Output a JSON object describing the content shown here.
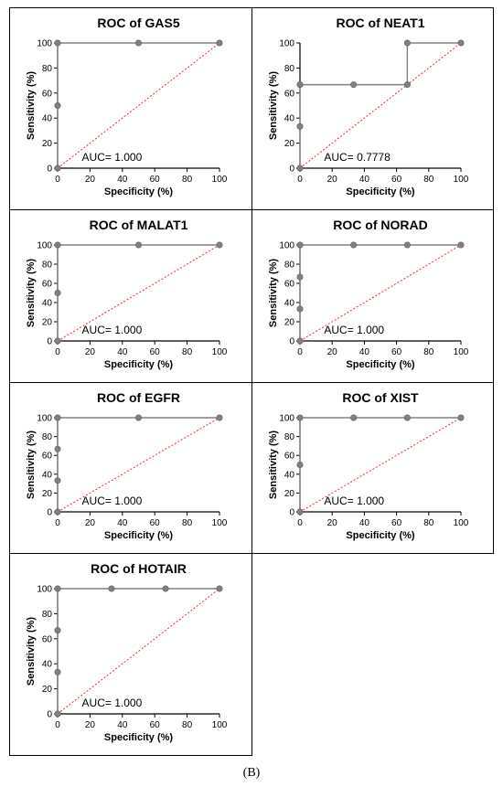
{
  "figure_label": "(B)",
  "colors": {
    "roc_line": "#808080",
    "point_fill": "#808080",
    "reference_line": "#e03030"
  },
  "chart_data": [
    {
      "type": "line",
      "title": "ROC of GAS5",
      "xlabel": "Specificity (%)",
      "ylabel": "Sensitivity (%)",
      "xlim": [
        0,
        100
      ],
      "ylim": [
        0,
        100
      ],
      "xticks": [
        0,
        20,
        40,
        60,
        80,
        100
      ],
      "yticks": [
        0,
        20,
        40,
        60,
        80,
        100
      ],
      "x": [
        0,
        0,
        0,
        50,
        100
      ],
      "y": [
        0,
        50,
        100,
        100,
        100
      ],
      "reference_line": [
        [
          0,
          0
        ],
        [
          100,
          100
        ]
      ],
      "auc_label": "AUC= 1.000"
    },
    {
      "type": "line",
      "title": "ROC of NEAT1",
      "xlabel": "Specificity (%)",
      "ylabel": "Sensitivity (%)",
      "xlim": [
        0,
        100
      ],
      "ylim": [
        0,
        100
      ],
      "xticks": [
        0,
        20,
        40,
        60,
        80,
        100
      ],
      "yticks": [
        0,
        20,
        40,
        60,
        80,
        100
      ],
      "x": [
        0,
        0,
        0,
        33.3,
        66.7,
        66.7,
        100
      ],
      "y": [
        0,
        33.3,
        66.7,
        66.7,
        66.7,
        100,
        100
      ],
      "reference_line": [
        [
          0,
          0
        ],
        [
          100,
          100
        ]
      ],
      "auc_label": "AUC= 0.7778"
    },
    {
      "type": "line",
      "title": "ROC of MALAT1",
      "xlabel": "Specificity (%)",
      "ylabel": "Sensitivity (%)",
      "xlim": [
        0,
        100
      ],
      "ylim": [
        0,
        100
      ],
      "xticks": [
        0,
        20,
        40,
        60,
        80,
        100
      ],
      "yticks": [
        0,
        20,
        40,
        60,
        80,
        100
      ],
      "x": [
        0,
        0,
        0,
        50,
        100
      ],
      "y": [
        0,
        50,
        100,
        100,
        100
      ],
      "reference_line": [
        [
          0,
          0
        ],
        [
          100,
          100
        ]
      ],
      "auc_label": "AUC= 1.000"
    },
    {
      "type": "line",
      "title": "ROC of NORAD",
      "xlabel": "Specificity (%)",
      "ylabel": "Sensitivity (%)",
      "xlim": [
        0,
        100
      ],
      "ylim": [
        0,
        100
      ],
      "xticks": [
        0,
        20,
        40,
        60,
        80,
        100
      ],
      "yticks": [
        0,
        20,
        40,
        60,
        80,
        100
      ],
      "x": [
        0,
        0,
        0,
        0,
        33.3,
        66.7,
        100
      ],
      "y": [
        0,
        33.3,
        66.7,
        100,
        100,
        100,
        100
      ],
      "reference_line": [
        [
          0,
          0
        ],
        [
          100,
          100
        ]
      ],
      "auc_label": "AUC= 1.000"
    },
    {
      "type": "line",
      "title": "ROC of EGFR",
      "xlabel": "Specificity (%)",
      "ylabel": "Sensitivity (%)",
      "xlim": [
        0,
        100
      ],
      "ylim": [
        0,
        100
      ],
      "xticks": [
        0,
        20,
        40,
        60,
        80,
        100
      ],
      "yticks": [
        0,
        20,
        40,
        60,
        80,
        100
      ],
      "x": [
        0,
        0,
        0,
        0,
        50,
        100
      ],
      "y": [
        0,
        33.3,
        66.7,
        100,
        100,
        100
      ],
      "reference_line": [
        [
          0,
          0
        ],
        [
          100,
          100
        ]
      ],
      "auc_label": "AUC= 1.000"
    },
    {
      "type": "line",
      "title": "ROC of XIST",
      "xlabel": "Specificity (%)",
      "ylabel": "Sensitivity (%)",
      "xlim": [
        0,
        100
      ],
      "ylim": [
        0,
        100
      ],
      "xticks": [
        0,
        20,
        40,
        60,
        80,
        100
      ],
      "yticks": [
        0,
        20,
        40,
        60,
        80,
        100
      ],
      "x": [
        0,
        0,
        0,
        33.3,
        66.7,
        100
      ],
      "y": [
        0,
        50,
        100,
        100,
        100,
        100
      ],
      "reference_line": [
        [
          0,
          0
        ],
        [
          100,
          100
        ]
      ],
      "auc_label": "AUC= 1.000"
    },
    {
      "type": "line",
      "title": "ROC of HOTAIR",
      "xlabel": "Specificity (%)",
      "ylabel": "Sensitivity (%)",
      "xlim": [
        0,
        100
      ],
      "ylim": [
        0,
        100
      ],
      "xticks": [
        0,
        20,
        40,
        60,
        80,
        100
      ],
      "yticks": [
        0,
        20,
        40,
        60,
        80,
        100
      ],
      "x": [
        0,
        0,
        0,
        0,
        33.3,
        66.7,
        100
      ],
      "y": [
        0,
        33.3,
        66.7,
        100,
        100,
        100,
        100
      ],
      "reference_line": [
        [
          0,
          0
        ],
        [
          100,
          100
        ]
      ],
      "auc_label": "AUC= 1.000"
    }
  ]
}
